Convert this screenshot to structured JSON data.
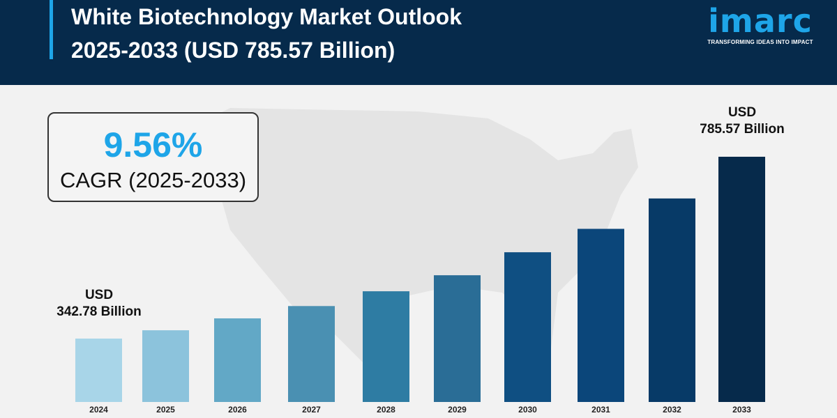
{
  "header": {
    "title_line1": "White Biotechnology Market Outlook",
    "title_line2": "2025-2033 (USD 785.57 Billion)"
  },
  "logo": {
    "word": "imarc",
    "tagline": "TRANSFORMING IDEAS INTO IMPACT"
  },
  "cagr": {
    "value": "9.56%",
    "label": "CAGR (2025-2033)"
  },
  "chart_data": {
    "type": "bar",
    "title": "White Biotechnology Market Outlook 2025-2033 (USD 785.57 Billion)",
    "categories": [
      "2024",
      "2025",
      "2026",
      "2027",
      "2028",
      "2029",
      "2030",
      "2031",
      "2032",
      "2033"
    ],
    "values": [
      342.78,
      363,
      392,
      422,
      458,
      497,
      553,
      610,
      684,
      785.57
    ],
    "unit": "USD Billion",
    "annotations": {
      "start": {
        "line1": "USD",
        "line2": "342.78 Billion"
      },
      "end": {
        "line1": "USD",
        "line2": "785.57 Billion"
      }
    },
    "colors": [
      "#a8d5e8",
      "#8cc3dc",
      "#62a8c6",
      "#4a90b2",
      "#2e7ca3",
      "#2a6d96",
      "#0f4f82",
      "#0b467a",
      "#073a67",
      "#062a4b"
    ],
    "grid": false,
    "legend": "none"
  }
}
